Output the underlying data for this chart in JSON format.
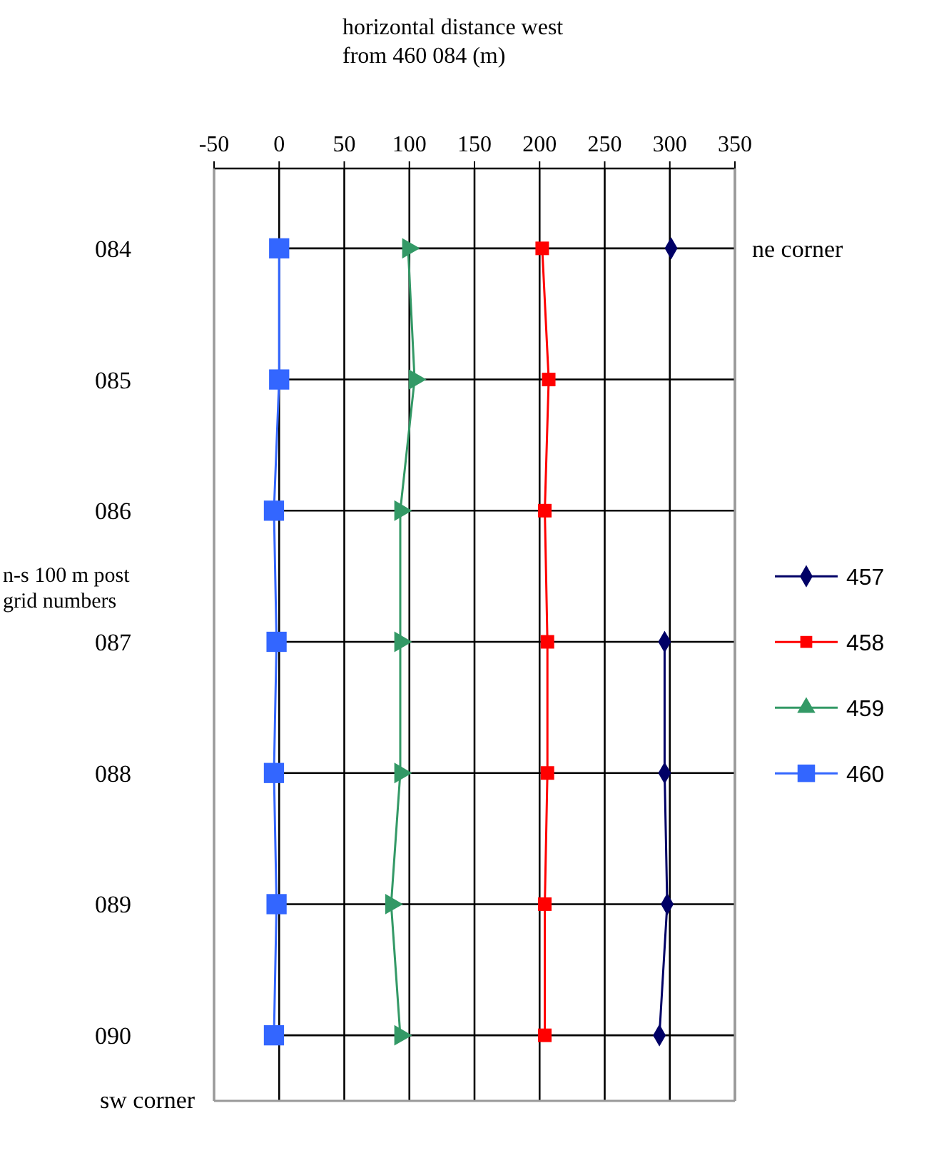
{
  "chart_data": {
    "type": "line",
    "orientation": "horizontal",
    "xlabel": "horizontal distance west from 460 084 (m)",
    "ylabel": "n-s 100 m post grid numbers",
    "categories": [
      "084",
      "085",
      "086",
      "087",
      "088",
      "089",
      "090"
    ],
    "xlim": [
      -50,
      350
    ],
    "xticks": [
      -50,
      0,
      50,
      100,
      150,
      200,
      250,
      300,
      350
    ],
    "grid": true,
    "legend": "right",
    "annotations": [
      "ne corner",
      "sw corner"
    ],
    "series": [
      {
        "name": "457",
        "color": "#000066",
        "marker": "diamond",
        "values": [
          301,
          null,
          null,
          296,
          296,
          298,
          292
        ]
      },
      {
        "name": "458",
        "color": "#ff0000",
        "marker": "square",
        "values": [
          202,
          207,
          204,
          206,
          206,
          204,
          204
        ]
      },
      {
        "name": "459",
        "color": "#339966",
        "marker": "triangle",
        "values": [
          99,
          104,
          93,
          93,
          93,
          86,
          93
        ]
      },
      {
        "name": "460",
        "color": "#3366ff",
        "marker": "square",
        "values": [
          0,
          0,
          -4,
          -2,
          -4,
          -2,
          -4
        ]
      }
    ]
  }
}
